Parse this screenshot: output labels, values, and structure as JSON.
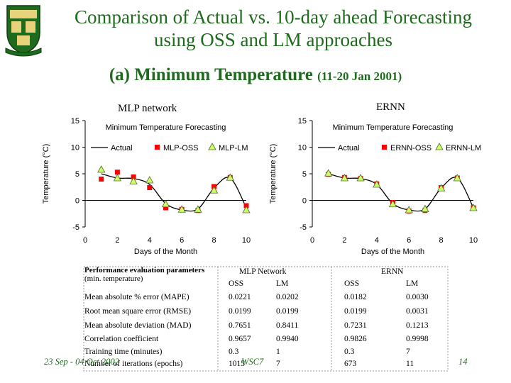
{
  "title_line1": "Comparison of Actual vs. 10-day ahead Forecasting",
  "title_line2": "using OSS and LM approaches",
  "subtitle": "(a) Minimum Temperature",
  "subtitle_dates": "(11-20 Jan 2001)",
  "crest_text": "",
  "left_chart_label": "MLP network",
  "right_chart_label": "ERNN",
  "colors": {
    "title": "#1e6b1e",
    "oss_marker": "#ff0000",
    "lm_marker": "#ccff66",
    "actual_line": "#000000"
  },
  "chart_data": [
    {
      "type": "line",
      "title": "Minimum Temperature Forecasting",
      "xlabel": "Days of the Month",
      "ylabel": "Temperature (°C)",
      "xlim": [
        0,
        10
      ],
      "ylim": [
        -5,
        15
      ],
      "xticks": [
        "0",
        "2",
        "4",
        "6",
        "8",
        "10"
      ],
      "yticks": [
        "-5",
        "0",
        "5",
        "10",
        "15"
      ],
      "legend": "top",
      "series": [
        {
          "name": "Actual",
          "style": "line",
          "x": [
            1,
            2,
            3,
            4,
            5,
            6,
            7,
            8,
            9,
            10
          ],
          "values": [
            5.0,
            4.2,
            4.1,
            3.0,
            -0.6,
            -1.8,
            -1.6,
            2.3,
            4.2,
            -1.4
          ]
        },
        {
          "name": "MLP-OSS",
          "style": "square",
          "x": [
            1,
            2,
            3,
            4,
            5,
            6,
            7,
            8,
            9,
            10
          ],
          "values": [
            4.0,
            5.3,
            4.4,
            2.4,
            -1.4,
            -1.7,
            -1.9,
            2.6,
            4.3,
            -1.0
          ]
        },
        {
          "name": "MLP-LM",
          "style": "triangle",
          "x": [
            1,
            2,
            3,
            4,
            5,
            6,
            7,
            8,
            9,
            10
          ],
          "values": [
            5.8,
            4.2,
            3.6,
            3.8,
            -0.7,
            -1.7,
            -1.7,
            1.9,
            4.3,
            -1.8
          ]
        }
      ]
    },
    {
      "type": "line",
      "title": "Minimum Temperature Forecasting",
      "xlabel": "Days of the Month",
      "ylabel": "Temperature (°C)",
      "xlim": [
        0,
        10
      ],
      "ylim": [
        -5,
        15
      ],
      "xticks": [
        "0",
        "2",
        "4",
        "6",
        "8",
        "10"
      ],
      "yticks": [
        "-5",
        "0",
        "5",
        "10",
        "15"
      ],
      "legend": "top",
      "series": [
        {
          "name": "Actual",
          "style": "line",
          "x": [
            1,
            2,
            3,
            4,
            5,
            6,
            7,
            8,
            9,
            10
          ],
          "values": [
            5.0,
            4.2,
            4.1,
            3.0,
            -0.6,
            -1.8,
            -1.6,
            2.3,
            4.2,
            -1.4
          ]
        },
        {
          "name": "ERNN-OSS",
          "style": "square",
          "x": [
            1,
            2,
            3,
            4,
            5,
            6,
            7,
            8,
            9,
            10
          ],
          "values": [
            4.9,
            4.3,
            4.1,
            3.1,
            -0.4,
            -2.0,
            -1.9,
            2.4,
            4.2,
            -1.4
          ]
        },
        {
          "name": "ERNN-LM",
          "style": "triangle",
          "x": [
            1,
            2,
            3,
            4,
            5,
            6,
            7,
            8,
            9,
            10
          ],
          "values": [
            5.1,
            4.2,
            4.2,
            3.0,
            -0.7,
            -1.8,
            -1.6,
            2.3,
            4.2,
            -1.4
          ]
        }
      ]
    }
  ],
  "table": {
    "header_label": "Performance evaluation parameters",
    "header_label_suffix": "(min. temperature)",
    "group_mlp": "MLP Network",
    "group_ernn": "ERNN",
    "sub_headers": [
      "OSS",
      "LM",
      "OSS",
      "LM"
    ],
    "rows": [
      {
        "label": "Mean absolute % error (MAPE)",
        "values": [
          "0.0221",
          "0.0202",
          "0.0182",
          "0.0030"
        ]
      },
      {
        "label": "Root mean square error (RMSE)",
        "values": [
          "0.0199",
          "0.0199",
          "0.0199",
          "0.0031"
        ]
      },
      {
        "label": "Mean absolute deviation (MAD)",
        "values": [
          "0.7651",
          "0.8411",
          "0.7231",
          "0.1213"
        ]
      },
      {
        "label": "Correlation coefficient",
        "values": [
          "0.9657",
          "0.9940",
          "0.9826",
          "0.9998"
        ]
      },
      {
        "label": "Training time (minutes)",
        "values": [
          "0.3",
          "1",
          "0.3",
          "7"
        ]
      },
      {
        "label": "Number of iterations (epochs)",
        "values": [
          "1015",
          "7",
          "673",
          "11"
        ]
      }
    ]
  },
  "footer": {
    "date": "23 Sep - 04 Oct 2002",
    "conference": "WSC7",
    "page": "14"
  }
}
